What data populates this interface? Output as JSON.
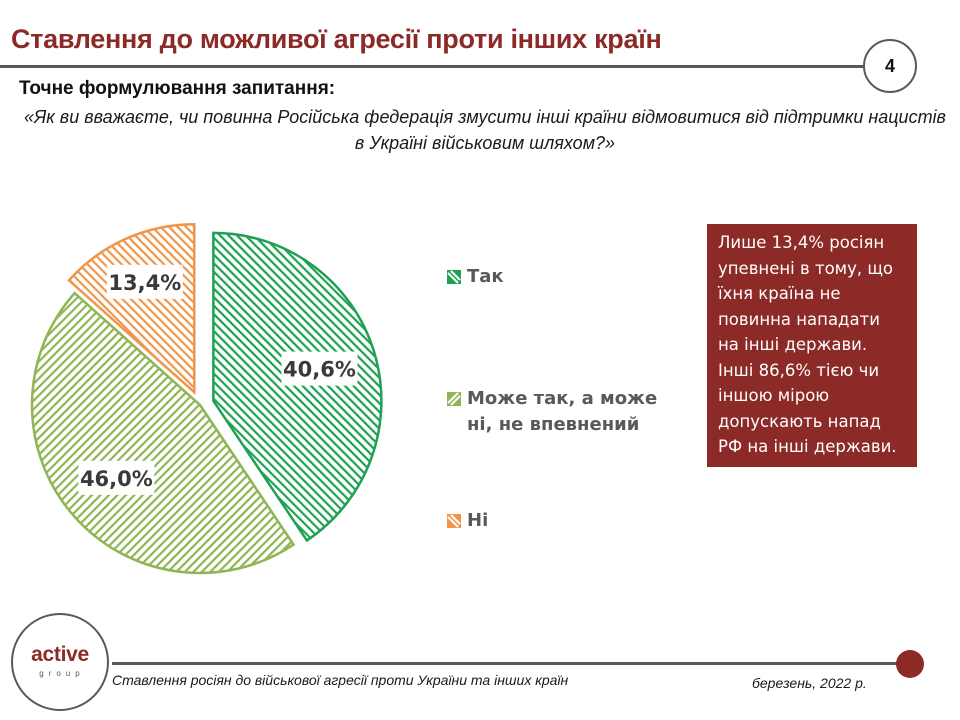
{
  "header": {
    "title": "Ставлення до можливої агресії проти інших країн",
    "page_number": "4"
  },
  "question": {
    "heading": "Точне формулювання запитання:",
    "text": "«Як ви вважаєте, чи повинна Російська федерація змусити інші країни відмовитися від підтримки нацистів в Україні військовим шляхом?»"
  },
  "chart_data": {
    "type": "pie",
    "title": "",
    "start_angle": "12 o'clock",
    "direction": "clockwise",
    "legend_position": "right",
    "slices": [
      {
        "label": "Так",
        "value": 40.6,
        "display": "40,6%",
        "color": "#1ea153",
        "exploded": true
      },
      {
        "label": "Може так, а може ні, не впевнений",
        "value": 46.0,
        "display": "46,0%",
        "color": "#8fb554",
        "exploded": false
      },
      {
        "label": "Ні",
        "value": 13.4,
        "display": "13,4%",
        "color": "#f0954a",
        "exploded": true
      }
    ]
  },
  "legend": [
    {
      "label_line1": "Так",
      "label_line2": ""
    },
    {
      "label_line1": "Може так, а може",
      "label_line2": "ні, не впевнений"
    },
    {
      "label_line1": "Ні",
      "label_line2": ""
    }
  ],
  "callout": {
    "lines": [
      "Лише 13,4% росіян",
      "упевнені в тому, що",
      "їхня країна не",
      "повинна нападати",
      "на інші держави.",
      "Інші 86,6% тією чи",
      "іншою мірою",
      "допускають напад",
      "РФ на інші держави."
    ],
    "background": "#8b2a27"
  },
  "footer": {
    "logo_word": "active",
    "logo_sub": "group",
    "text": "Ставлення росіян до військової агресії проти України та інших країн",
    "date": "березень, 2022 р."
  },
  "colors": {
    "brand": "#8b2a27",
    "rule": "#58595b"
  }
}
